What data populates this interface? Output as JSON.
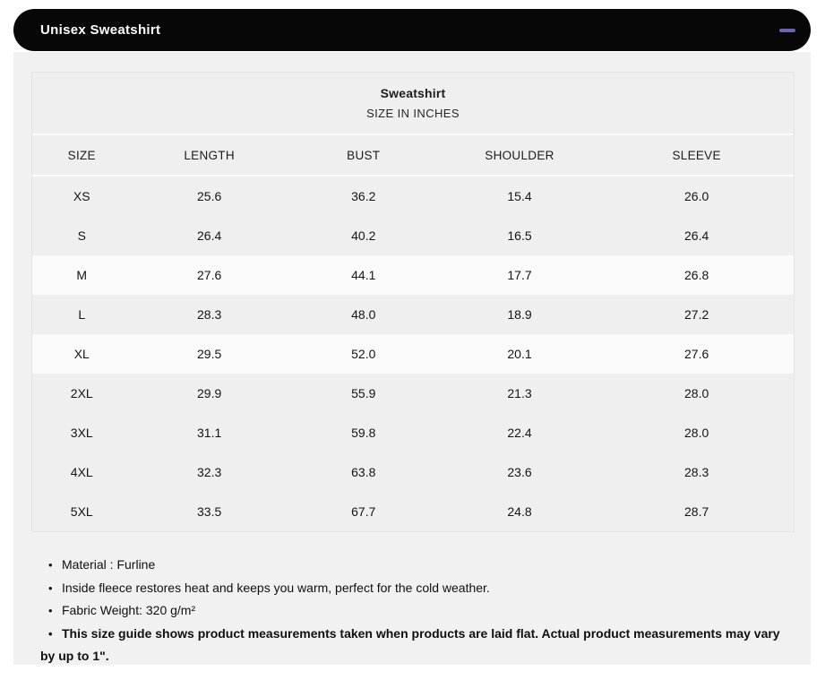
{
  "accordion": {
    "title": "Unisex Sweatshirt",
    "collapse_icon": "minus"
  },
  "colors": {
    "accordion_background": "#070707",
    "accordion_text": "#ffffff",
    "collapse_icon_accent": "#6c63b5",
    "panel_background": "#f1f1f1",
    "row_gray": "#efefef",
    "row_light": "#fafafa"
  },
  "table": {
    "title": "Sweatshirt",
    "subtitle": "SIZE IN INCHES",
    "columns": [
      "SIZE",
      "LENGTH",
      "BUST",
      "SHOULDER",
      "SLEEVE"
    ],
    "rows": [
      {
        "size": "XS",
        "length": "25.6",
        "bust": "36.2",
        "shoulder": "15.4",
        "sleeve": "26.0",
        "shade": "gray"
      },
      {
        "size": "S",
        "length": "26.4",
        "bust": "40.2",
        "shoulder": "16.5",
        "sleeve": "26.4",
        "shade": "gray"
      },
      {
        "size": "M",
        "length": "27.6",
        "bust": "44.1",
        "shoulder": "17.7",
        "sleeve": "26.8",
        "shade": "light"
      },
      {
        "size": "L",
        "length": "28.3",
        "bust": "48.0",
        "shoulder": "18.9",
        "sleeve": "27.2",
        "shade": "gray"
      },
      {
        "size": "XL",
        "length": "29.5",
        "bust": "52.0",
        "shoulder": "20.1",
        "sleeve": "27.6",
        "shade": "light"
      },
      {
        "size": "2XL",
        "length": "29.9",
        "bust": "55.9",
        "shoulder": "21.3",
        "sleeve": "28.0",
        "shade": "gray"
      },
      {
        "size": "3XL",
        "length": "31.1",
        "bust": "59.8",
        "shoulder": "22.4",
        "sleeve": "28.0",
        "shade": "gray"
      },
      {
        "size": "4XL",
        "length": "32.3",
        "bust": "63.8",
        "shoulder": "23.6",
        "sleeve": "28.3",
        "shade": "gray"
      },
      {
        "size": "5XL",
        "length": "33.5",
        "bust": "67.7",
        "shoulder": "24.8",
        "sleeve": "28.7",
        "shade": "gray"
      }
    ]
  },
  "notes": [
    {
      "text": "Material : Furline",
      "bold": false
    },
    {
      "text": "Inside fleece restores heat and keeps you warm, perfect for the cold weather.",
      "bold": false
    },
    {
      "text": "Fabric Weight: 320 g/m²",
      "bold": false
    },
    {
      "text": "This size guide shows product measurements taken when products are laid flat. Actual product measurements may vary by up to 1\".",
      "bold": true
    }
  ]
}
